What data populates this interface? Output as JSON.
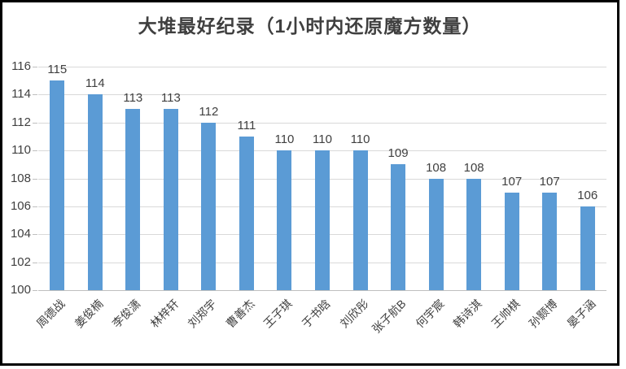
{
  "chart_data": {
    "type": "bar",
    "title": "大堆最好纪录（1小时内还原魔方数量）",
    "categories": [
      "周德战",
      "姜俊楠",
      "李俊潇",
      "林梓轩",
      "刘郑宇",
      "曹善杰",
      "王子琪",
      "于书晗",
      "刘欣彤",
      "张子航B",
      "何宇宸",
      "韩诗淇",
      "王帅棋",
      "孙颢博",
      "晏子涵"
    ],
    "values": [
      115,
      114,
      113,
      113,
      112,
      111,
      110,
      110,
      110,
      109,
      108,
      108,
      107,
      107,
      106
    ],
    "xlabel": "",
    "ylabel": "",
    "ylim": [
      100,
      116
    ],
    "ytick_step": 2,
    "ytick_labels": [
      "100",
      "102",
      "104",
      "106",
      "108",
      "110",
      "112",
      "114",
      "116"
    ],
    "grid": true,
    "data_labels": true,
    "legend": "none",
    "colors": {
      "bar": "#5B9BD5",
      "gridline": "#D9D9D9",
      "axis_line": "#BFBFBF",
      "tick_label": "#404040",
      "title": "#3F3F3F",
      "frame_border": "#000000"
    }
  }
}
